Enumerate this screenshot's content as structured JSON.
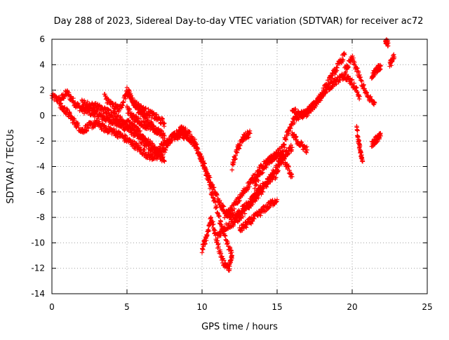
{
  "chart_data": {
    "type": "scatter",
    "title": "Day 288 of 2023, Sidereal Day-to-day VTEC variation (SDTVAR) for receiver ac72",
    "xlabel": "GPS time / hours",
    "ylabel": "SDTVAR / TECUs",
    "xlim": [
      0,
      25
    ],
    "ylim": [
      -14,
      6
    ],
    "xticks": [
      0,
      5,
      10,
      15,
      20,
      25
    ],
    "yticks": [
      -14,
      -12,
      -10,
      -8,
      -6,
      -4,
      -2,
      0,
      2,
      4,
      6
    ],
    "grid": true,
    "marker": "+",
    "series": [
      {
        "name": "SDTVAR",
        "color": "#ff0000",
        "tracks": [
          {
            "x": [
              0.0,
              0.5,
              1.0,
              1.5,
              2.0,
              2.5,
              3.0,
              3.5,
              4.0,
              4.5,
              5.0,
              5.5,
              6.0,
              6.5,
              7.0,
              7.5,
              8.0,
              8.5,
              9.0,
              9.5,
              10.0,
              10.5,
              11.0,
              11.5,
              12.0,
              12.5,
              13.0,
              13.5,
              14.0,
              14.5,
              15.0,
              15.5,
              16.0,
              16.5,
              17.0,
              17.5,
              18.0,
              18.5,
              19.0,
              19.5,
              20.0,
              20.5
            ],
            "y": [
              1.5,
              1.2,
              1.8,
              1.0,
              0.5,
              0.3,
              0.1,
              -0.2,
              -0.4,
              -0.7,
              -1.0,
              -1.4,
              -2.0,
              -2.5,
              -2.8,
              -2.2,
              -1.8,
              -1.5,
              -1.6,
              -2.2,
              -3.5,
              -5.0,
              -6.5,
              -7.5,
              -8.0,
              -7.6,
              -7.0,
              -6.3,
              -5.6,
              -5.0,
              -4.6,
              -2.0,
              -0.5,
              0.0,
              0.3,
              0.9,
              1.6,
              2.3,
              2.8,
              3.2,
              2.6,
              1.5
            ]
          },
          {
            "x": [
              0.5,
              1.0,
              1.5,
              2.0,
              2.5,
              3.0,
              3.5,
              4.0,
              4.5,
              5.0,
              5.5,
              6.0,
              6.5,
              7.0,
              7.5,
              8.0,
              8.5,
              9.0
            ],
            "y": [
              0.8,
              0.3,
              -0.5,
              -1.2,
              -0.8,
              -0.6,
              -1.0,
              -1.2,
              -1.5,
              -1.9,
              -2.3,
              -2.8,
              -3.2,
              -3.3,
              -2.7,
              -1.7,
              -1.3,
              -1.4
            ]
          },
          {
            "x": [
              2.0,
              2.5,
              3.0,
              3.5,
              4.0,
              4.5,
              5.0,
              5.5,
              6.0,
              6.5,
              7.0,
              7.5
            ],
            "y": [
              1.0,
              0.8,
              0.7,
              0.4,
              0.2,
              -0.3,
              -0.5,
              -1.0,
              -1.6,
              -2.2,
              -2.8,
              -3.6
            ]
          },
          {
            "x": [
              3.5,
              4.0,
              4.5,
              5.0,
              5.5,
              6.0,
              6.5,
              7.0
            ],
            "y": [
              1.5,
              0.8,
              0.5,
              1.8,
              0.8,
              0.2,
              -0.6,
              -1.3
            ]
          },
          {
            "x": [
              5.0,
              5.5,
              6.0,
              6.5,
              7.0,
              7.5
            ],
            "y": [
              2.0,
              1.0,
              0.5,
              0.2,
              -0.2,
              -0.6
            ]
          },
          {
            "x": [
              5.0,
              5.5,
              6.0,
              6.5,
              7.0,
              7.5
            ],
            "y": [
              0.5,
              -0.2,
              -0.6,
              -0.9,
              -1.2,
              -1.6
            ]
          },
          {
            "x": [
              8.5,
              9.0,
              9.5,
              10.0,
              10.5,
              11.0,
              11.5,
              12.0
            ],
            "y": [
              -1.0,
              -1.3,
              -2.0,
              -3.5,
              -5.5,
              -7.5,
              -9.5,
              -11.0
            ]
          },
          {
            "x": [
              10.0,
              10.3,
              10.6,
              11.0,
              11.4,
              11.8,
              12.0
            ],
            "y": [
              -10.5,
              -9.5,
              -8.0,
              -10.0,
              -11.5,
              -12.0,
              -11.0
            ]
          },
          {
            "x": [
              11.0,
              11.5,
              12.0,
              12.5,
              13.0,
              13.5,
              14.0,
              14.5,
              15.0,
              15.5,
              16.0
            ],
            "y": [
              -9.5,
              -8.8,
              -8.5,
              -8.0,
              -7.3,
              -6.5,
              -5.9,
              -5.0,
              -4.0,
              -3.1,
              -2.5
            ]
          },
          {
            "x": [
              11.5,
              12.0,
              12.5,
              13.0,
              13.5,
              14.0,
              14.5,
              15.0,
              15.5
            ],
            "y": [
              -8.0,
              -7.3,
              -6.5,
              -5.6,
              -4.8,
              -4.0,
              -3.5,
              -3.0,
              -2.5
            ]
          },
          {
            "x": [
              12.0,
              12.4,
              12.8,
              13.2
            ],
            "y": [
              -4.0,
              -2.5,
              -1.7,
              -1.4
            ]
          },
          {
            "x": [
              12.5,
              13.0,
              13.5,
              14.0,
              14.5,
              15.0
            ],
            "y": [
              -9.0,
              -8.5,
              -8.0,
              -7.5,
              -7.0,
              -6.6
            ]
          },
          {
            "x": [
              13.5,
              14.0,
              14.5,
              15.0,
              15.5,
              16.0
            ],
            "y": [
              -5.5,
              -4.3,
              -3.5,
              -3.2,
              -3.6,
              -4.8
            ]
          },
          {
            "x": [
              16.0,
              16.5,
              17.0,
              17.5,
              18.0,
              18.5,
              19.0,
              19.5
            ],
            "y": [
              0.5,
              0.0,
              0.2,
              0.9,
              1.8,
              2.8,
              3.8,
              4.8
            ]
          },
          {
            "x": [
              19.5,
              20.0,
              20.5,
              21.0,
              21.5
            ],
            "y": [
              3.5,
              4.5,
              3.0,
              1.5,
              1.0
            ]
          },
          {
            "x": [
              20.3,
              20.5,
              20.7
            ],
            "y": [
              -1.0,
              -2.5,
              -3.6
            ]
          },
          {
            "x": [
              21.3,
              21.6,
              21.9
            ],
            "y": [
              -2.2,
              -1.9,
              -1.6
            ]
          },
          {
            "x": [
              21.3,
              21.6,
              21.9
            ],
            "y": [
              3.0,
              3.6,
              3.9
            ]
          },
          {
            "x": [
              22.2,
              22.4
            ],
            "y": [
              5.9,
              5.7
            ]
          },
          {
            "x": [
              22.5,
              22.8
            ],
            "y": [
              4.0,
              4.6
            ]
          },
          {
            "x": [
              16.0,
              16.5,
              17.0
            ],
            "y": [
              -1.5,
              -2.2,
              -2.7
            ]
          }
        ]
      }
    ]
  }
}
